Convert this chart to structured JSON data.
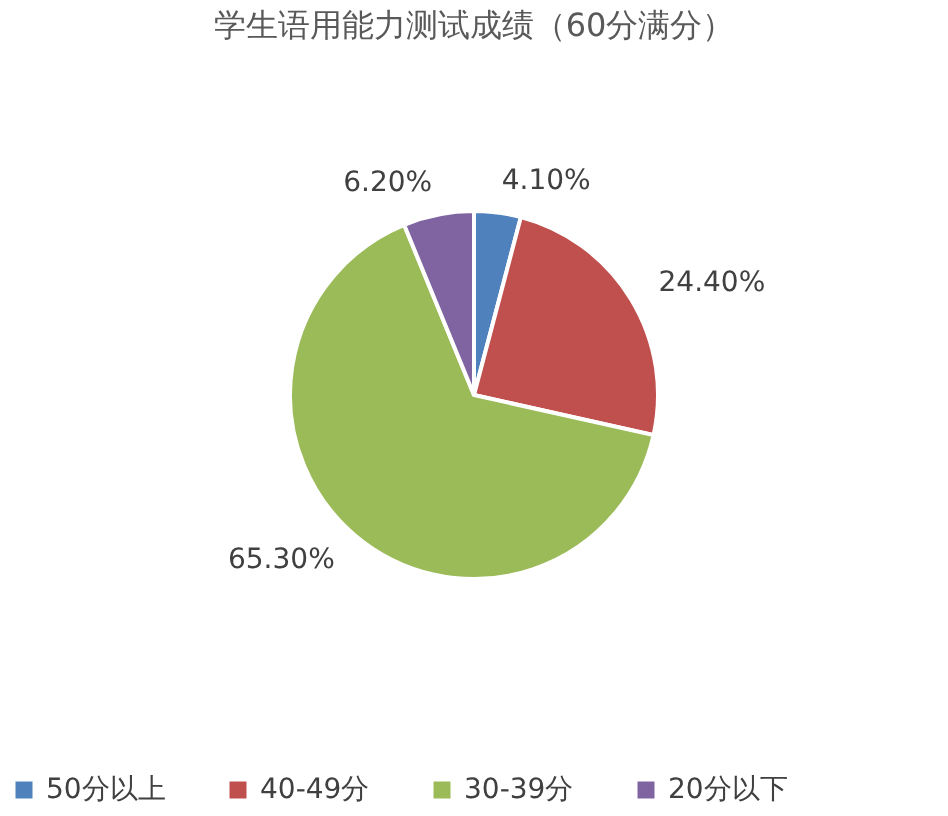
{
  "chart_data": {
    "type": "pie",
    "title": "学生语用能力测试成绩（60分满分）",
    "categories": [
      "50分以上",
      "40-49分",
      "30-39分",
      "20分以下"
    ],
    "values": [
      4.1,
      24.4,
      65.3,
      6.2
    ],
    "value_labels": [
      "4.10%",
      "24.40%",
      "65.30%",
      "6.20%"
    ],
    "colors": [
      "#4f81bd",
      "#c0504d",
      "#9bbb59",
      "#8064a2"
    ],
    "legend": "bottom"
  }
}
